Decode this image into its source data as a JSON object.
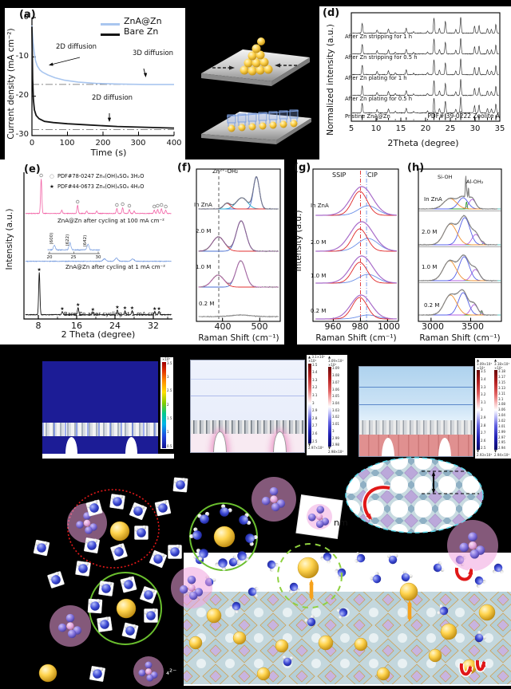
{
  "chart_data": [
    {
      "id": "a",
      "type": "line",
      "label": "(a)",
      "xlabel": "Time (s)",
      "ylabel": "Current density (mA cm⁻²)",
      "xticks": [
        "0",
        "100",
        "200",
        "300",
        "400"
      ],
      "yticks": [
        "0",
        "-10",
        "-20",
        "-30"
      ],
      "xlim": [
        0,
        400
      ],
      "ylim": [
        -30,
        0
      ],
      "legend": [
        {
          "name": "ZnA@Zn",
          "color": "#a9c6ef"
        },
        {
          "name": "Bare Zn",
          "color": "#151515"
        }
      ],
      "annotations": [
        "2D diffusion",
        "3D diffusion",
        "2D diffusion"
      ],
      "series": [
        {
          "name": "ZnA@Zn",
          "color": "#a9c6ef",
          "plateau": -17,
          "x": [
            0,
            3,
            6,
            10,
            15,
            22,
            30,
            45,
            65,
            90,
            130,
            180,
            250,
            320,
            400
          ],
          "y": [
            -2,
            -6.2,
            -8.6,
            -10.9,
            -12.3,
            -13.3,
            -13.9,
            -14.6,
            -15.3,
            -15.9,
            -16.4,
            -16.75,
            -16.9,
            -17,
            -17
          ]
        },
        {
          "name": "Bare Zn",
          "color": "#151515",
          "plateau": -28.5,
          "x": [
            0,
            2,
            4,
            7,
            12,
            20,
            35,
            60,
            100,
            160,
            240,
            320,
            400
          ],
          "y": [
            -2.3,
            -15.6,
            -20.8,
            -23.5,
            -24.9,
            -25.7,
            -26.4,
            -26.7,
            -27,
            -27.3,
            -27.7,
            -27.9,
            -28.1
          ]
        }
      ]
    },
    {
      "id": "d",
      "type": "xrd-stack",
      "label": "(d)",
      "xlabel": "2Theta (degree)",
      "ylabel": "Normalized intensity (a.u.)",
      "xticks": [
        "5",
        "10",
        "15",
        "20",
        "25",
        "30",
        "35"
      ],
      "xlim": [
        5,
        35
      ],
      "traces": [
        "After Zn stripping for 1 h",
        "After Zn stripping for 0.5 h",
        "After Zn plating for 1 h",
        "After Zn plating for 0.5 h",
        "Pristine ZnA@Zn"
      ],
      "reference": "PDF# 39-0222 Zeolite A",
      "peaks": [
        [
          7.2,
          60
        ],
        [
          10.2,
          20
        ],
        [
          12.5,
          24
        ],
        [
          13.9,
          10
        ],
        [
          16.1,
          30
        ],
        [
          17.6,
          8
        ],
        [
          20.4,
          12
        ],
        [
          21.7,
          95
        ],
        [
          22.8,
          28
        ],
        [
          24.0,
          75
        ],
        [
          26.1,
          24
        ],
        [
          27.1,
          100
        ],
        [
          29.9,
          45
        ],
        [
          30.8,
          48
        ],
        [
          32.5,
          28
        ],
        [
          33.3,
          24
        ],
        [
          34.2,
          55
        ]
      ]
    },
    {
      "id": "e",
      "type": "xrd-stack",
      "label": "(e)",
      "xlabel": "2 Theta (degree)",
      "ylabel": "Intensity (a.u.)",
      "xticks": [
        "8",
        "16",
        "24",
        "32"
      ],
      "xlim": [
        5,
        36
      ],
      "legend": [
        {
          "marker": "○",
          "label": "PDF#78-0247 Zn₄(OH)₆SO₄ 3H₂O"
        },
        {
          "marker": "★",
          "label": "PDF#44-0673 Zn₄(OH)₆SO₄ 4H₂O"
        }
      ],
      "traces": [
        {
          "label": "ZnA@Zn after cycling at 100 mA cm⁻²",
          "color": "#f263a6",
          "peaks": [
            [
              8.6,
              43
            ],
            [
              12.9,
              4
            ],
            [
              16.2,
              10
            ],
            [
              18.1,
              3
            ],
            [
              20.2,
              3
            ],
            [
              24.4,
              6
            ],
            [
              25.6,
              7
            ],
            [
              27.0,
              5
            ],
            [
              28.0,
              3
            ],
            [
              32.2,
              4
            ],
            [
              32.9,
              5
            ],
            [
              33.7,
              6
            ],
            [
              34.6,
              4
            ]
          ],
          "marked": [
            0,
            2,
            5,
            6,
            7,
            9,
            10,
            11,
            12
          ]
        },
        {
          "label": "ZnA@Zn after cycling at 1 mA cm⁻²",
          "color": "#7b9fe0",
          "peaks": [
            [
              21.8,
              3
            ],
            [
              24.3,
              4
            ],
            [
              27.7,
              3
            ]
          ]
        },
        {
          "label": "Bare Zn after cycling at 1 mA cm⁻²",
          "color": "#151515",
          "peaks": [
            [
              8.2,
              53
            ],
            [
              13.0,
              4
            ],
            [
              16.3,
              9
            ],
            [
              19.4,
              3
            ],
            [
              24.5,
              6
            ],
            [
              26.1,
              5
            ],
            [
              27.6,
              5
            ],
            [
              32.3,
              4
            ],
            [
              33.2,
              4
            ]
          ],
          "marked": [
            0,
            1,
            2,
            3,
            4,
            5,
            6,
            7,
            8
          ]
        }
      ],
      "inset": {
        "xticks": [
          "20",
          "25",
          "30"
        ],
        "peak_labels": [
          "(600)",
          "(622)",
          "(642)"
        ],
        "peaks": [
          [
            21,
            6
          ],
          [
            24.2,
            9
          ],
          [
            27.9,
            7
          ]
        ]
      }
    },
    {
      "id": "f",
      "type": "raman-stack",
      "label": "(f)",
      "xlabel": "Raman Shift (cm⁻¹)",
      "xticks": [
        "400",
        "500"
      ],
      "xlim": [
        330,
        555
      ],
      "annotation": "Zn²⁺-OH₂",
      "dashed_line_x": 390,
      "traces": [
        {
          "label": "In ZnA",
          "env": "#555a8a",
          "comps": [
            [
              412,
              9,
              7,
              "r"
            ],
            [
              452,
              15,
              14,
              "cy"
            ],
            [
              491,
              8,
              40,
              "b"
            ]
          ]
        },
        {
          "label": "2.0 M",
          "env": "#8a3a9a",
          "comps": [
            [
              389,
              16,
              18,
              "r"
            ],
            [
              450,
              13,
              38,
              "b"
            ]
          ]
        },
        {
          "label": "1.0 M",
          "env": "#d050c0",
          "comps": [
            [
              388,
              16,
              15,
              "r"
            ],
            [
              449,
              13,
              33,
              "b"
            ]
          ]
        },
        {
          "label": "0.2 M",
          "env": "#999999",
          "comps": [
            [
              450,
              25,
              2,
              "n"
            ]
          ]
        }
      ]
    },
    {
      "id": "g",
      "type": "raman-stack",
      "label": "(g)",
      "xlabel": "Raman Shift (cm⁻¹)",
      "ylabel": "Intensity (a.u.)",
      "xticks": [
        "960",
        "980",
        "1000"
      ],
      "xlim": [
        945,
        1008
      ],
      "regions": [
        "SSIP",
        "CIP"
      ],
      "vlines": [
        [
          980,
          "#e02828"
        ],
        [
          984.5,
          "#6b8fe8"
        ]
      ],
      "traces": [
        {
          "label": "In ZnA",
          "comps": [
            [
              981,
              8,
              36,
              "env"
            ],
            [
              979.5,
              5.5,
              30,
              "r2"
            ],
            [
              985.5,
              7,
              12,
              "b2"
            ]
          ]
        },
        {
          "label": "2.0 M",
          "comps": [
            [
              981,
              8.5,
              37,
              "env"
            ],
            [
              979.5,
              5.5,
              28,
              "r2"
            ],
            [
              985.5,
              7.5,
              16,
              "b2"
            ]
          ]
        },
        {
          "label": "1.0 M",
          "comps": [
            [
              981,
              8,
              34,
              "env"
            ],
            [
              979.5,
              5.5,
              26,
              "r2"
            ],
            [
              985.5,
              7,
              11,
              "b2"
            ]
          ]
        },
        {
          "label": "0.2 M",
          "comps": [
            [
              980.5,
              7.5,
              30,
              "env"
            ],
            [
              979.5,
              5.5,
              27,
              "r2"
            ],
            [
              985.5,
              7,
              5,
              "b2"
            ]
          ]
        }
      ]
    },
    {
      "id": "h",
      "type": "raman-stack",
      "label": "(h)",
      "xlabel": "Raman Shift (cm⁻¹)",
      "xticks": [
        "3000",
        "3500"
      ],
      "xlim": [
        2840,
        3840
      ],
      "annotations": [
        "Si-OH",
        "Al-OH₂"
      ],
      "traces": [
        {
          "label": "In ZnA",
          "env": "#787878",
          "comps": [
            [
              3240,
              80,
              13,
              "o"
            ],
            [
              3405,
              60,
              14,
              "bl"
            ],
            [
              3448,
              7,
              9,
              "g"
            ],
            [
              3520,
              42,
              12,
              "v"
            ]
          ],
          "spikes": [
            [
              3438,
              5,
              24
            ],
            [
              3472,
              4,
              14
            ]
          ]
        },
        {
          "label": "2.0 M",
          "env": "#787878",
          "comps": [
            [
              3245,
              80,
              26,
              "o"
            ],
            [
              3425,
              65,
              34,
              "bl"
            ],
            [
              3565,
              48,
              13,
              "v"
            ],
            [
              3660,
              12,
              2,
              "t"
            ]
          ]
        },
        {
          "label": "1.0 M",
          "env": "#787878",
          "comps": [
            [
              3235,
              80,
              25,
              "o"
            ],
            [
              3418,
              65,
              30,
              "bl"
            ],
            [
              3560,
              50,
              14,
              "v"
            ]
          ]
        },
        {
          "label": "0.2 M",
          "env": "#787878",
          "comps": [
            [
              3245,
              78,
              25,
              "o"
            ],
            [
              3405,
              62,
              28,
              "bl"
            ],
            [
              3545,
              45,
              13,
              "v"
            ],
            [
              3640,
              10,
              4,
              "g"
            ]
          ]
        }
      ]
    }
  ],
  "simulations": {
    "panel1": {
      "colorbar": {
        "header": "×10⁵",
        "ticks": [
          "3.5",
          "3",
          "2.5",
          "2",
          "1.5",
          "1",
          "0.5"
        ]
      }
    },
    "panel2": {
      "colorbars": [
        {
          "max": "▲ 3.1×10³",
          "header": "×10³",
          "ticks": [
            "3.5",
            "3.4",
            "3.3",
            "3.2",
            "3.1",
            "3",
            "2.9",
            "2.8",
            "2.7",
            "2.6",
            "2.5"
          ],
          "min": "▼ 2.97×10³"
        },
        {
          "max": "▲ 3.09×10³",
          "header": "×10³",
          "ticks": [
            "3.09",
            "3.08",
            "3.07",
            "3.06",
            "3.05",
            "3.04",
            "3.03",
            "3.02",
            "3.01",
            "3",
            "2.99",
            "2.98"
          ],
          "min": "▼ 2.98×10³"
        }
      ]
    },
    "panel3": {
      "colorbars": [
        {
          "max": "▲ 3.09×10³",
          "header": "×10³",
          "ticks": [
            "3.5",
            "3.4",
            "3.3",
            "3.2",
            "3.1",
            "3",
            "2.9",
            "2.8",
            "2.7",
            "2.6",
            "2.5"
          ],
          "min": "▼ 2.93×10³"
        },
        {
          "max": "▲ 3.18×10³",
          "header": "×10³",
          "ticks": [
            "3.18",
            "3.17",
            "3.15",
            "3.13",
            "3.11",
            "3.1",
            "3.08",
            "3.06",
            "3.04",
            "3.02",
            "3.01",
            "2.99",
            "2.97",
            "2.95",
            "2.94"
          ],
          "min": "▼ 2.94×10³"
        }
      ]
    }
  },
  "schematic": {
    "pore_label": "nm",
    "sulfate_label": "₄²⁻"
  }
}
